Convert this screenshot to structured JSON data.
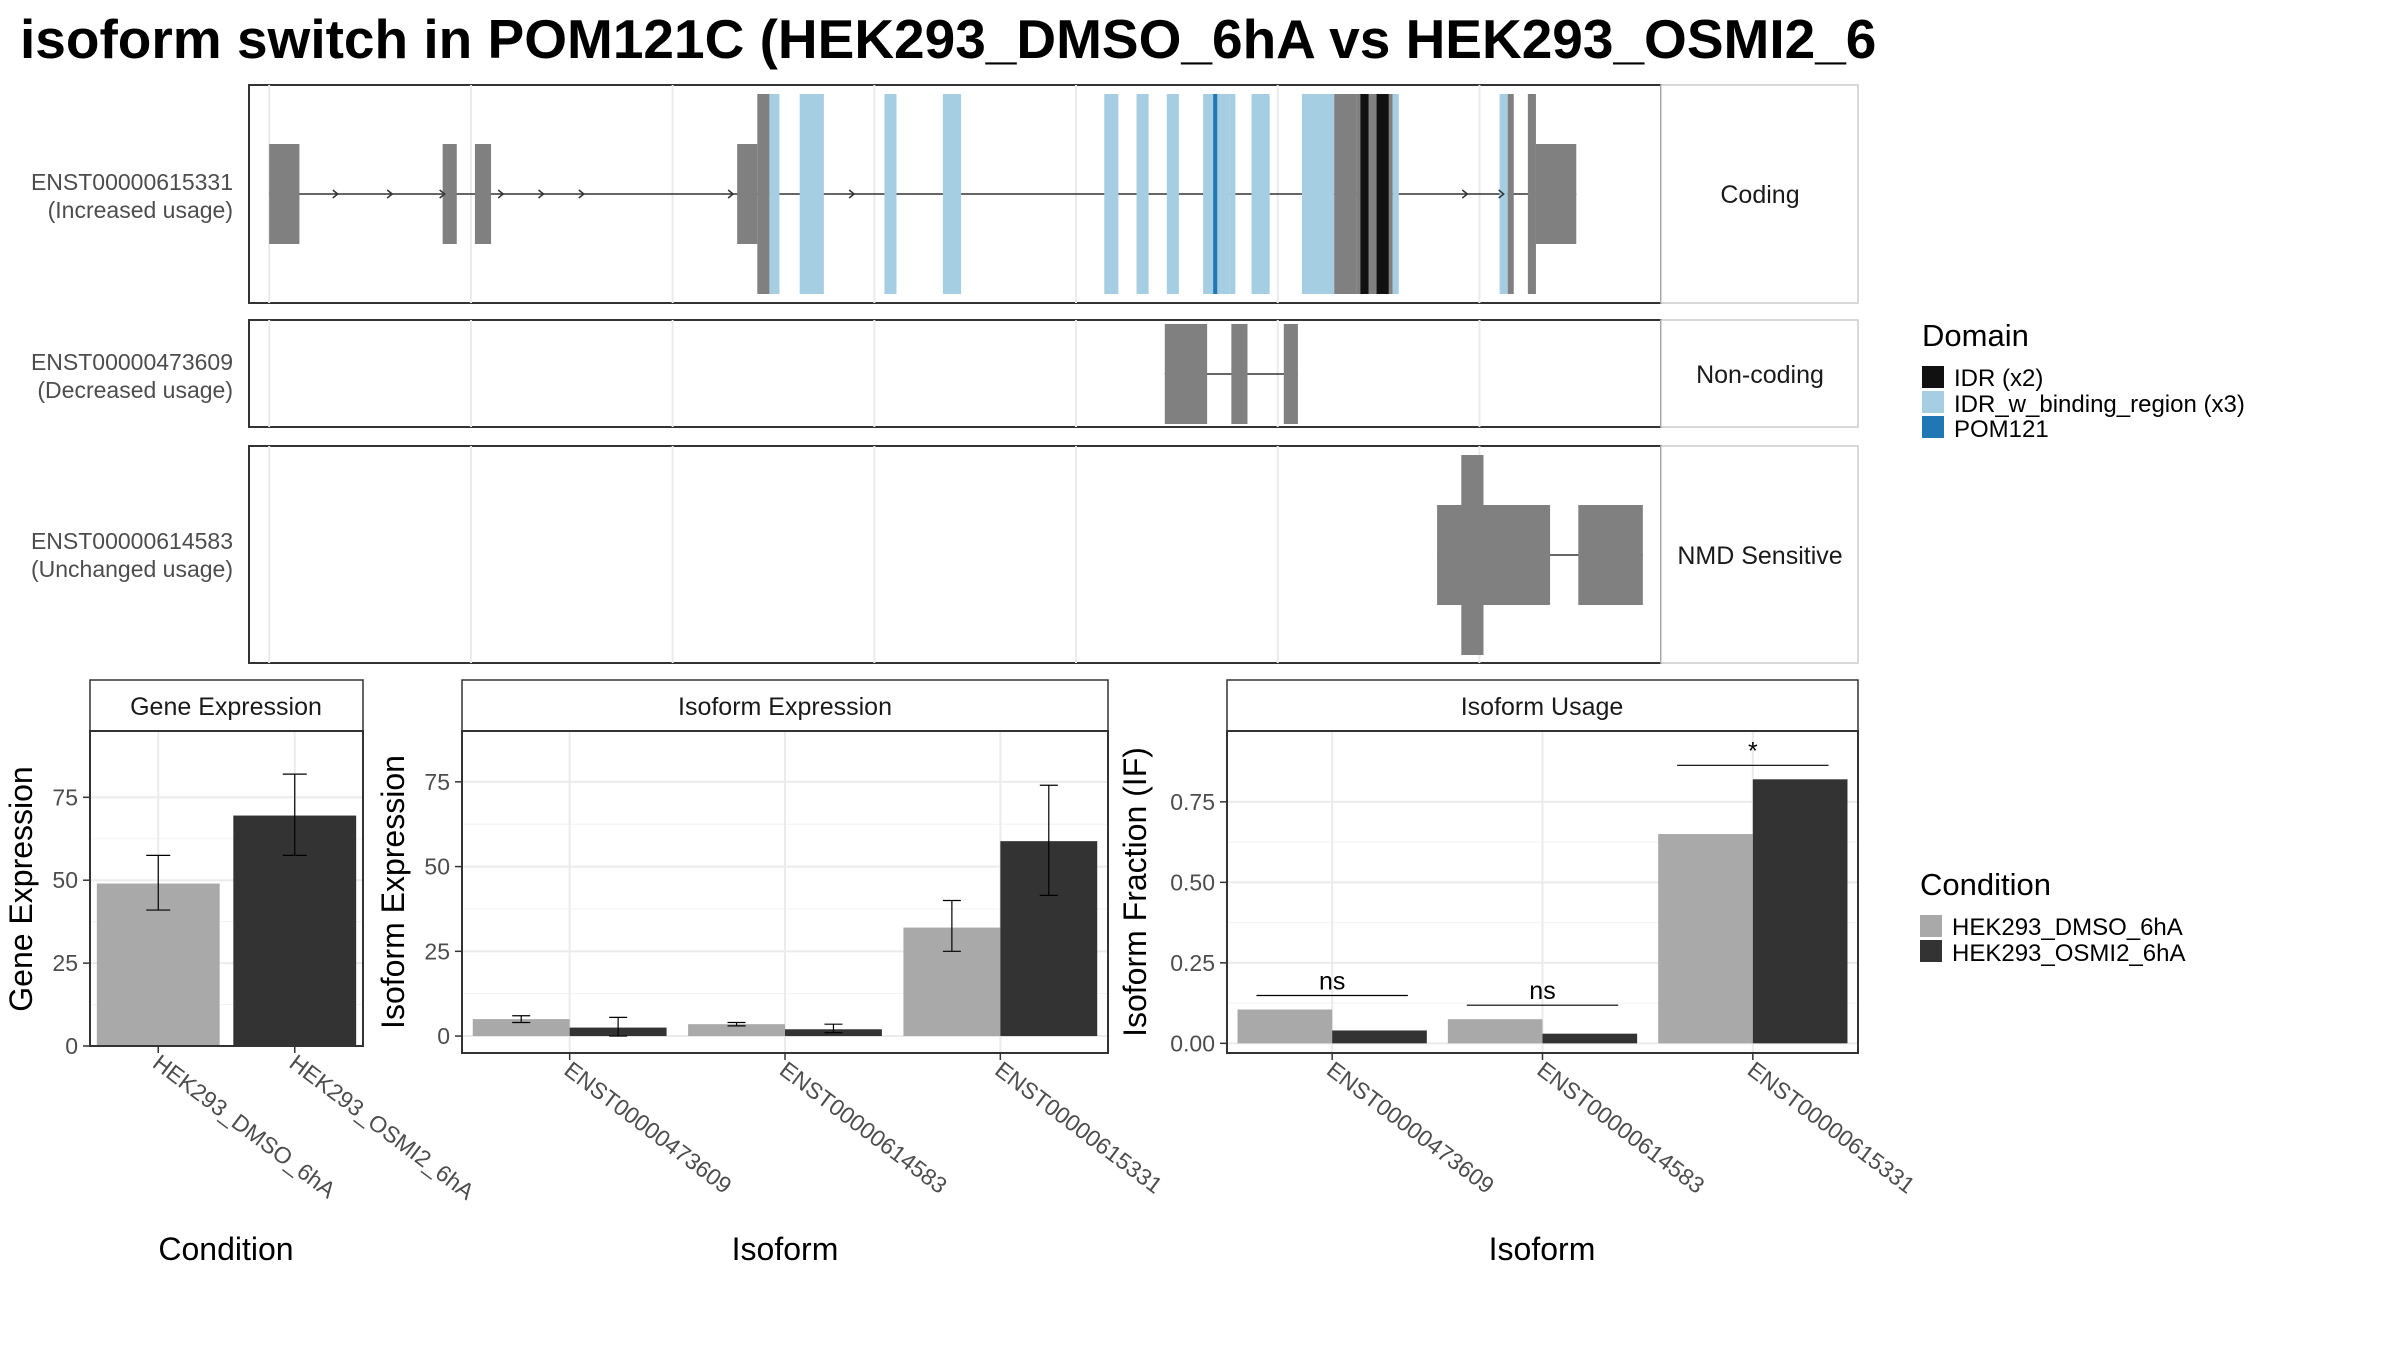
{
  "title": "isoform switch in POM121C (HEK293_DMSO_6hA vs HEK293_OSMI2_6",
  "colors": {
    "exon": "#808080",
    "idr": "#111111",
    "idr_binding": "#a6cee3",
    "pom121": "#1f78b4",
    "dmso": "#a9a9a9",
    "osmi2": "#333333"
  },
  "domain_legend": {
    "title": "Domain",
    "items": [
      {
        "label": "IDR (x2)",
        "color": "#111111"
      },
      {
        "label": "IDR_w_binding_region (x3)",
        "color": "#a6cee3"
      },
      {
        "label": "POM121",
        "color": "#1f78b4"
      }
    ]
  },
  "condition_legend": {
    "title": "Condition",
    "items": [
      {
        "label": "HEK293_DMSO_6hA",
        "color": "#a9a9a9"
      },
      {
        "label": "HEK293_OSMI2_6hA",
        "color": "#333333"
      }
    ]
  },
  "isoforms": [
    {
      "id": "ENST00000615331",
      "usage": "(Increased usage)",
      "category": "Coding"
    },
    {
      "id": "ENST00000473609",
      "usage": "(Decreased usage)",
      "category": "Non-coding"
    },
    {
      "id": "ENST00000614583",
      "usage": "(Unchanged usage)",
      "category": "NMD Sensitive"
    }
  ],
  "chart_data": [
    {
      "type": "bar",
      "title": "Gene Expression",
      "xlabel": "Condition",
      "ylabel": "Gene Expression",
      "categories": [
        "HEK293_DMSO_6hA",
        "HEK293_OSMI2_6hA"
      ],
      "values": [
        49,
        69.5
      ],
      "error_low": [
        41,
        57.5
      ],
      "error_high": [
        57.5,
        82
      ],
      "ylim": [
        0,
        95
      ],
      "yticks": [
        0,
        25,
        50,
        75
      ],
      "grid": true
    },
    {
      "type": "bar",
      "title": "Isoform Expression",
      "xlabel": "Isoform",
      "ylabel": "Isoform Expression",
      "categories": [
        "ENST00000473609",
        "ENST00000614583",
        "ENST00000615331"
      ],
      "series": [
        {
          "values": [
            5,
            3.5,
            32
          ],
          "error_low": [
            4,
            3,
            25
          ],
          "error_high": [
            6,
            4,
            40
          ]
        },
        {
          "values": [
            2.5,
            2,
            57.5
          ],
          "error_low": [
            0,
            1,
            41.5
          ],
          "error_high": [
            5.5,
            3.5,
            74
          ]
        }
      ],
      "ylim": [
        -5,
        90
      ],
      "yticks": [
        0,
        25,
        50,
        75
      ],
      "grid": true
    },
    {
      "type": "bar",
      "title": "Isoform Usage",
      "xlabel": "Isoform",
      "ylabel": "Isoform Fraction (IF)",
      "categories": [
        "ENST00000473609",
        "ENST00000614583",
        "ENST00000615331"
      ],
      "series": [
        {
          "values": [
            0.105,
            0.075,
            0.65
          ]
        },
        {
          "values": [
            0.04,
            0.03,
            0.82
          ]
        }
      ],
      "significance": [
        "ns",
        "ns",
        "*"
      ],
      "ylim": [
        -0.03,
        0.97
      ],
      "yticks": [
        0.0,
        0.25,
        0.5,
        0.75
      ],
      "ytick_labels": [
        "0.00",
        "0.25",
        "0.50",
        "0.75"
      ],
      "grid": true
    }
  ],
  "transcripts": [
    {
      "id": "ENST00000615331",
      "features": [
        {
          "kind": "exon",
          "x0": 0,
          "x1": 1.5
        },
        {
          "kind": "exon",
          "x0": 8.6,
          "x1": 9.3
        },
        {
          "kind": "exon",
          "x0": 10.2,
          "x1": 11.0
        },
        {
          "kind": "exon",
          "x0": 23.2,
          "x1": 24.2
        },
        {
          "kind": "cds",
          "x0": 24.2,
          "x1": 24.8
        },
        {
          "kind": "idr_binding",
          "x0": 24.8,
          "x1": 25.3
        },
        {
          "kind": "idr_binding",
          "x0": 26.3,
          "x1": 27.5
        },
        {
          "kind": "idr_binding",
          "x0": 30.5,
          "x1": 31.1
        },
        {
          "kind": "idr_binding",
          "x0": 33.4,
          "x1": 34.3
        },
        {
          "kind": "idr_binding",
          "x0": 41.4,
          "x1": 42.1
        },
        {
          "kind": "idr_binding",
          "x0": 43.0,
          "x1": 43.6
        },
        {
          "kind": "idr_binding",
          "x0": 44.5,
          "x1": 45.1
        },
        {
          "kind": "idr_binding",
          "x0": 46.3,
          "x1": 47.6
        },
        {
          "kind": "pom121",
          "x0": 46.8,
          "x1": 47.0
        },
        {
          "kind": "idr_binding",
          "x0": 47.6,
          "x1": 47.9
        },
        {
          "kind": "idr_binding",
          "x0": 48.7,
          "x1": 49.6
        },
        {
          "kind": "idr_binding",
          "x0": 51.2,
          "x1": 52.8
        },
        {
          "kind": "cds",
          "x0": 52.8,
          "x1": 53.9
        },
        {
          "kind": "cds",
          "x0": 53.9,
          "x1": 55.7
        },
        {
          "kind": "idr",
          "x0": 54.1,
          "x1": 54.5
        },
        {
          "kind": "idr",
          "x0": 54.9,
          "x1": 55.5
        },
        {
          "kind": "idr_binding",
          "x0": 55.7,
          "x1": 56.0
        },
        {
          "kind": "idr_binding",
          "x0": 61.0,
          "x1": 61.4
        },
        {
          "kind": "cds",
          "x0": 61.4,
          "x1": 61.7
        },
        {
          "kind": "cds",
          "x0": 62.4,
          "x1": 62.8
        },
        {
          "kind": "exon",
          "x0": 62.8,
          "x1": 64.8
        }
      ],
      "arrows": [
        3.4,
        6.1,
        8.7,
        11.6,
        13.6,
        15.6,
        23.0,
        29.0,
        59.4,
        61.2
      ]
    },
    {
      "id": "ENST00000473609",
      "features": [
        {
          "kind": "exon",
          "x0": 44.4,
          "x1": 46.5
        },
        {
          "kind": "exon",
          "x0": 47.7,
          "x1": 48.5
        },
        {
          "kind": "exon",
          "x0": 50.3,
          "x1": 51.0
        }
      ],
      "arrows": []
    },
    {
      "id": "ENST00000614583",
      "features": [
        {
          "kind": "exon",
          "x0": 57.9,
          "x1": 63.5
        },
        {
          "kind": "cds",
          "x0": 59.1,
          "x1": 60.2
        },
        {
          "kind": "exon",
          "x0": 64.9,
          "x1": 68.1
        }
      ],
      "arrows": []
    }
  ]
}
